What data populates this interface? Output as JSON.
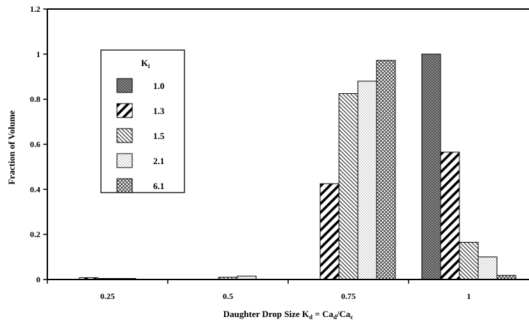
{
  "chart_data": {
    "type": "bar",
    "xlabel": "Daughter Drop Size K",
    "xlabel_sub": "d",
    "xlabel_eq": " = Ca",
    "xlabel_sub2": "d",
    "xlabel_tail": "/Ca",
    "xlabel_sub3": "c",
    "ylabel": "Fraction of Volume",
    "ylim": [
      0,
      1.2
    ],
    "yticks": [
      "0",
      "0.2",
      "0.4",
      "0.6",
      "0.8",
      "1",
      "1.2"
    ],
    "categories": [
      "0.25",
      "0.5",
      "0.75",
      "1"
    ],
    "grid": false,
    "legend": {
      "title": "K",
      "title_sub": "i",
      "position": "top-left"
    },
    "series": [
      {
        "name": "1.0",
        "pattern": "dark-dots",
        "values": [
          0.0,
          0.0,
          0.0,
          1.0
        ]
      },
      {
        "name": "1.3",
        "pattern": "diagonal-bold",
        "values": [
          0.008,
          0.0,
          0.425,
          0.565
        ]
      },
      {
        "name": "1.5",
        "pattern": "diagonal-thin",
        "values": [
          0.004,
          0.01,
          0.825,
          0.165
        ]
      },
      {
        "name": "2.1",
        "pattern": "light-dots",
        "values": [
          0.004,
          0.015,
          0.88,
          0.1
        ]
      },
      {
        "name": "6.1",
        "pattern": "crosshatch",
        "values": [
          0.0,
          0.0,
          0.972,
          0.018
        ]
      }
    ]
  }
}
